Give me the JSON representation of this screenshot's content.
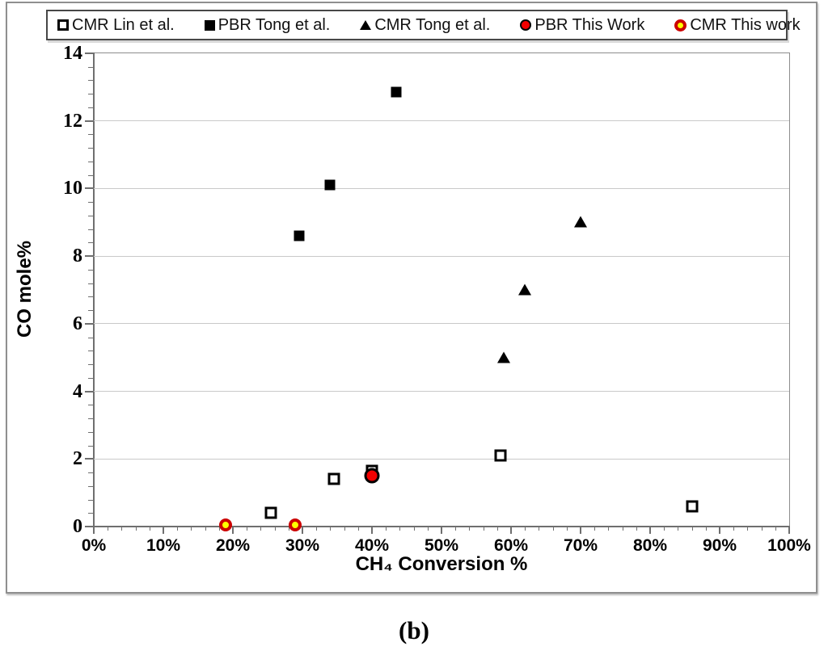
{
  "figure": {
    "caption": "(b)"
  },
  "colors": {
    "marker_red": "#f20000",
    "marker_yellow": "#ffff00",
    "ring_red": "#cc0000",
    "marker_black": "#000000",
    "grid": "#c9c9c9",
    "axis": "#6f6f6f",
    "frame_border": "#8f8f8f",
    "legend_border": "#474747"
  },
  "chart_data": {
    "type": "scatter",
    "title": "",
    "xlabel": "CH₄ Conversion %",
    "ylabel": "CO mole%",
    "xlim": [
      0,
      100
    ],
    "ylim": [
      0,
      14
    ],
    "x_tick_step": 10,
    "x_minor_step": 2,
    "y_tick_step": 2,
    "y_minor_step": 0.4,
    "x_tick_format": "percent",
    "grid": "horizontal-only",
    "legend_position": "top",
    "series": [
      {
        "name": "CMR Lin et al.",
        "marker": "open-square",
        "points": [
          [
            25.5,
            0.4
          ],
          [
            34.5,
            1.4
          ],
          [
            40,
            1.65
          ],
          [
            58.5,
            2.1
          ],
          [
            86,
            0.6
          ]
        ]
      },
      {
        "name": "PBR Tong et al.",
        "marker": "filled-square",
        "points": [
          [
            29.5,
            8.6
          ],
          [
            34,
            10.1
          ],
          [
            43.5,
            12.85
          ]
        ]
      },
      {
        "name": "CMR Tong et al.",
        "marker": "filled-triangle",
        "points": [
          [
            59,
            5.0
          ],
          [
            62,
            7.0
          ],
          [
            70,
            9.0
          ]
        ]
      },
      {
        "name": "PBR This Work",
        "marker": "red-circle",
        "points": [
          [
            40,
            1.5
          ]
        ]
      },
      {
        "name": "CMR This work",
        "marker": "yellow-circle",
        "points": [
          [
            19,
            0.05
          ],
          [
            29,
            0.05
          ]
        ]
      }
    ]
  }
}
